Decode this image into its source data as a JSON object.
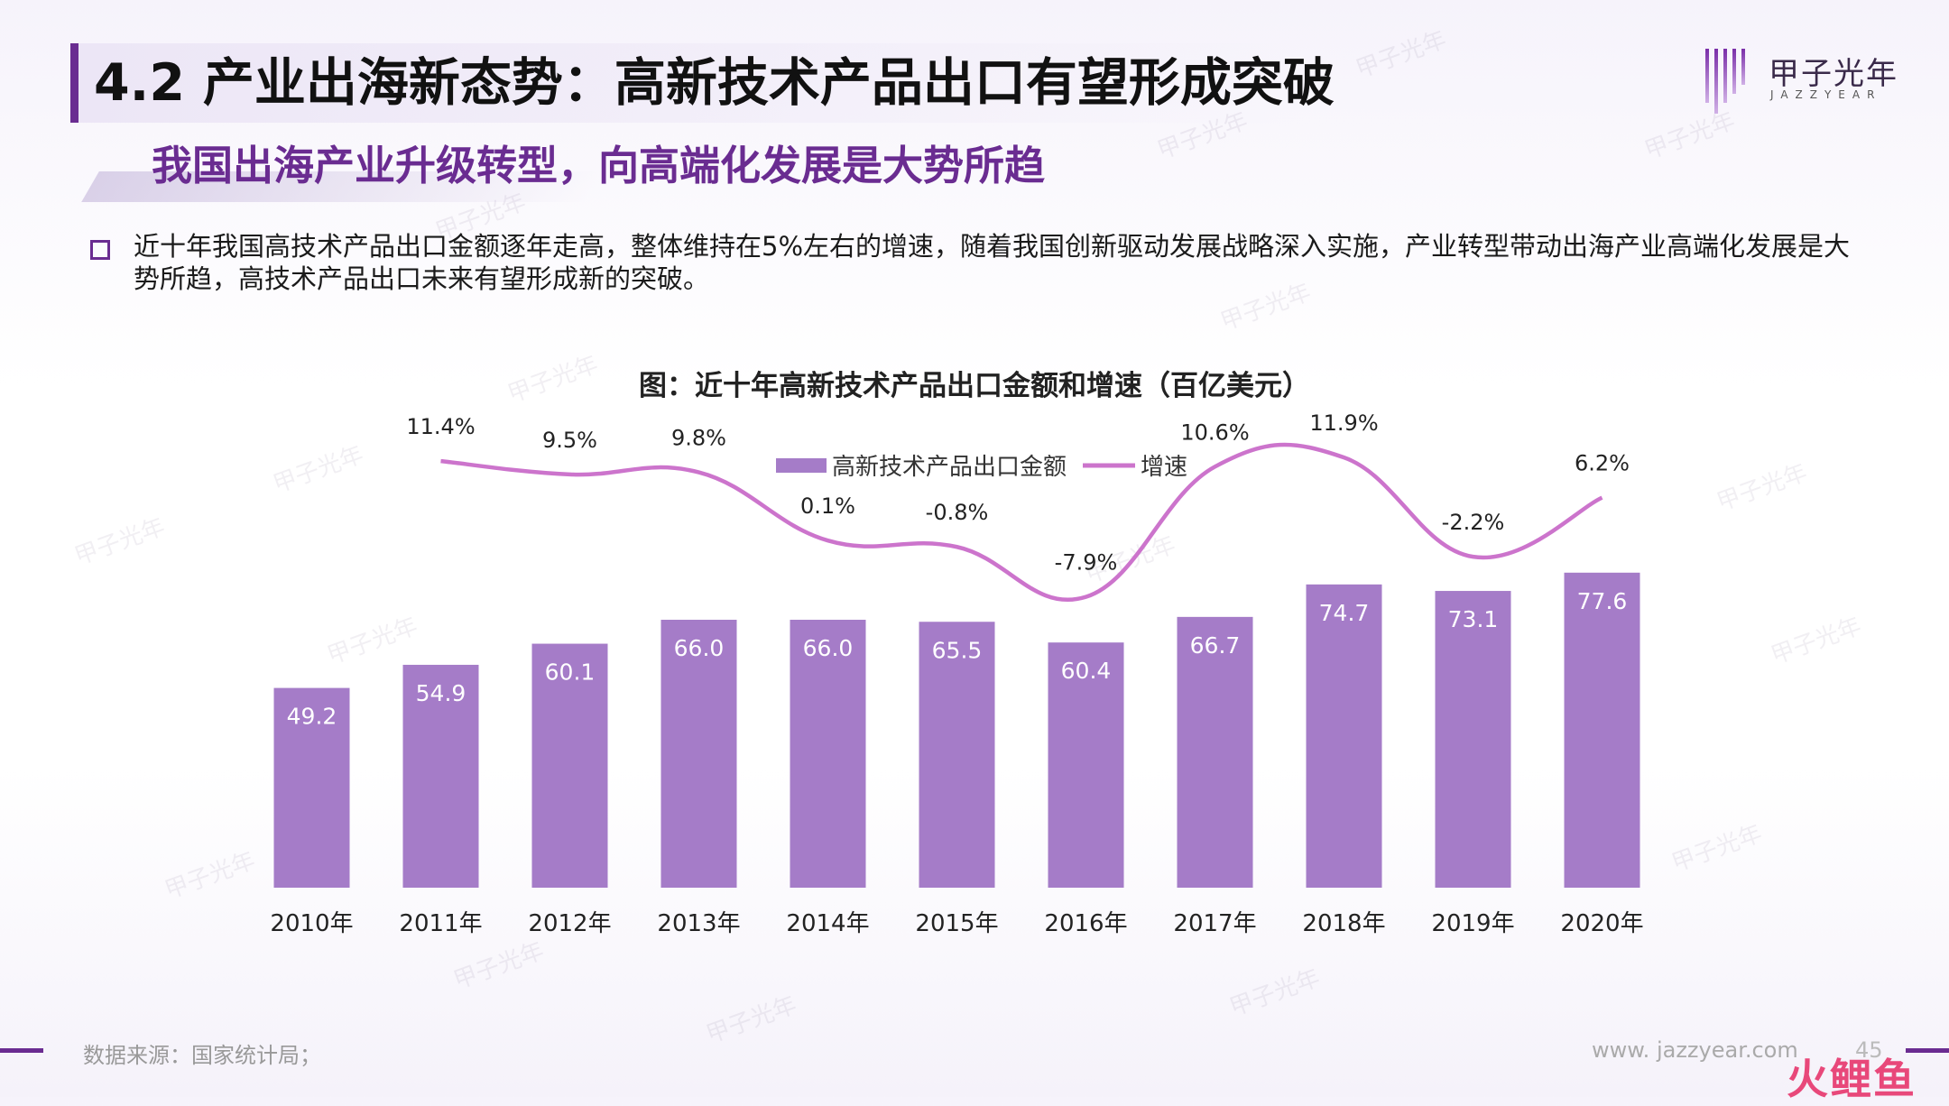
{
  "header": {
    "title": "4.2 产业出海新态势：高新技术产品出口有望形成突破",
    "subtitle": "我国出海产业升级转型，向高端化发展是大势所趋",
    "logo_text": "甲子光年",
    "logo_sub": "JAZZYEAR"
  },
  "bullet": {
    "text": "近十年我国高技术产品出口金额逐年走高，整体维持在5%左右的增速，随着我国创新驱动发展战略深入实施，产业转型带动出海产业高端化发展是大势所趋，高技术产品出口未来有望形成新的突破。"
  },
  "footer": {
    "source": "数据来源：国家统计局；",
    "site": "www. jazzyear.com",
    "page": "45",
    "corner_mark": "火鲤鱼"
  },
  "watermark": "甲子光年",
  "colors": {
    "accent": "#6a2c91",
    "bar": "#a57cc8",
    "line": "#cc74cc",
    "bar_label": "#ffffff"
  },
  "chart_data": {
    "type": "bar",
    "title": "图：近十年高新技术产品出口金额和增速（百亿美元）",
    "categories": [
      "2010年",
      "2011年",
      "2012年",
      "2013年",
      "2014年",
      "2015年",
      "2016年",
      "2017年",
      "2018年",
      "2019年",
      "2020年"
    ],
    "series": [
      {
        "name": "高新技术产品出口金额",
        "kind": "bar",
        "values": [
          49.2,
          54.9,
          60.1,
          66.0,
          66.0,
          65.5,
          60.4,
          66.7,
          74.7,
          73.1,
          77.6
        ],
        "labels": [
          "49.2",
          "54.9",
          "60.1",
          "66.0",
          "66.0",
          "65.5",
          "60.4",
          "66.7",
          "74.7",
          "73.1",
          "77.6"
        ]
      },
      {
        "name": "增速",
        "kind": "line",
        "values": [
          null,
          11.4,
          9.5,
          9.8,
          0.1,
          -0.8,
          -7.9,
          10.6,
          11.9,
          -2.2,
          6.2
        ],
        "labels": [
          "",
          "11.4%",
          "9.5%",
          "9.8%",
          "0.1%",
          "-0.8%",
          "-7.9%",
          "10.6%",
          "11.9%",
          "-2.2%",
          "6.2%"
        ]
      }
    ],
    "legend_position": "top-center",
    "grid": false
  }
}
